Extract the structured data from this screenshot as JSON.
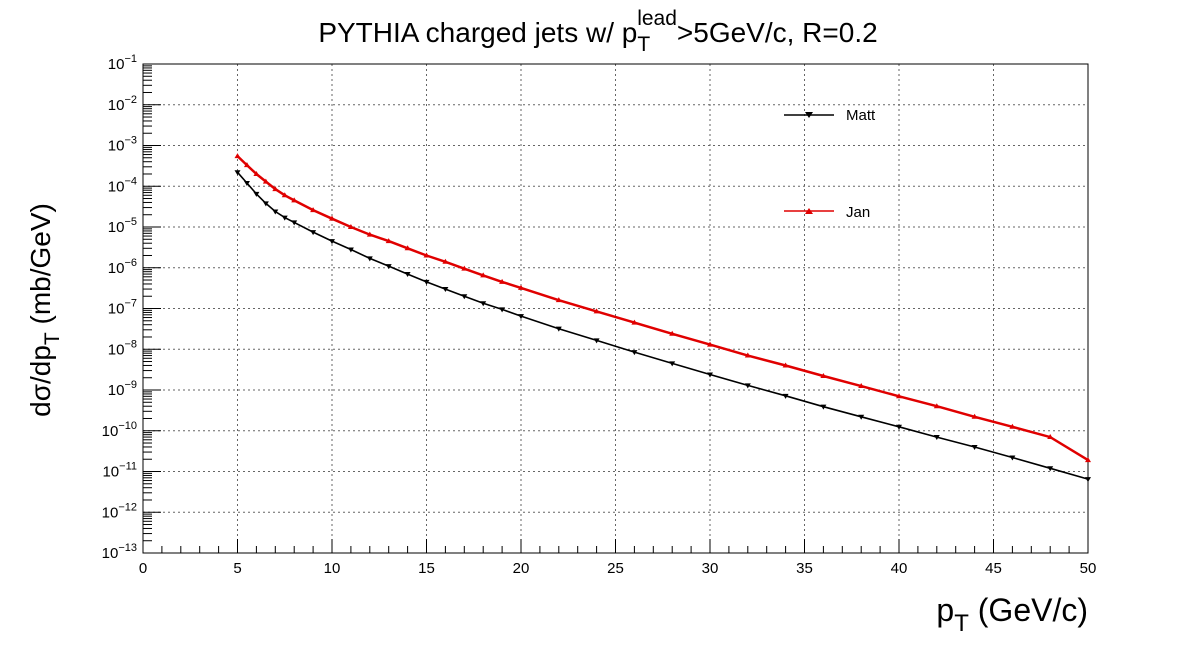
{
  "chart_data": {
    "type": "line",
    "title": {
      "main": "PYTHIA charged jets w/ p",
      "sub": "T",
      "sup": "lead",
      "rest": ">5GeV/c, R=0.2"
    },
    "xlabel": {
      "main": "p",
      "sub": "T",
      "rest": " (GeV/c)"
    },
    "ylabel": {
      "main": "dσ/dp",
      "sub": "T",
      "rest": " (mb/GeV)"
    },
    "xlim": [
      0,
      50
    ],
    "ylim": [
      1e-13,
      0.1
    ],
    "yscale": "log",
    "grid": true,
    "legend_position": "top-right",
    "x_ticks": [
      "0",
      "5",
      "10",
      "15",
      "20",
      "25",
      "30",
      "35",
      "40",
      "45",
      "50"
    ],
    "y_ticks": [
      {
        "base": "10",
        "exp": "−13"
      },
      {
        "base": "10",
        "exp": "−12"
      },
      {
        "base": "10",
        "exp": "−11"
      },
      {
        "base": "10",
        "exp": "−10"
      },
      {
        "base": "10",
        "exp": "−9"
      },
      {
        "base": "10",
        "exp": "−8"
      },
      {
        "base": "10",
        "exp": "−7"
      },
      {
        "base": "10",
        "exp": "−6"
      },
      {
        "base": "10",
        "exp": "−5"
      },
      {
        "base": "10",
        "exp": "−4"
      },
      {
        "base": "10",
        "exp": "−3"
      },
      {
        "base": "10",
        "exp": "−2"
      },
      {
        "base": "10",
        "exp": "−1"
      }
    ],
    "series": [
      {
        "name": "Matt",
        "color": "#000000",
        "marker": "triangle-down",
        "x": [
          5,
          5.5,
          6,
          6.5,
          7,
          7.5,
          8,
          9,
          10,
          11,
          12,
          13,
          14,
          15,
          16,
          17,
          18,
          19,
          20,
          22,
          24,
          26,
          28,
          30,
          32,
          34,
          36,
          38,
          40,
          42,
          44,
          46,
          48,
          50
        ],
        "y": [
          0.00022,
          0.00012,
          6.5e-05,
          3.8e-05,
          2.4e-05,
          1.7e-05,
          1.3e-05,
          7.5e-06,
          4.5e-06,
          2.8e-06,
          1.7e-06,
          1.1e-06,
          7e-07,
          4.5e-07,
          3e-07,
          2e-07,
          1.35e-07,
          9.5e-08,
          6.5e-08,
          3.2e-08,
          1.65e-08,
          8.5e-09,
          4.5e-09,
          2.4e-09,
          1.3e-09,
          7.2e-10,
          3.9e-10,
          2.2e-10,
          1.25e-10,
          7e-11,
          4e-11,
          2.2e-11,
          1.2e-11,
          6.5e-12
        ]
      },
      {
        "name": "Jan",
        "color": "#e00000",
        "marker": "triangle-up",
        "x": [
          5,
          5.5,
          6,
          6.5,
          7,
          7.5,
          8,
          9,
          10,
          11,
          12,
          13,
          14,
          15,
          16,
          17,
          18,
          19,
          20,
          22,
          24,
          26,
          28,
          30,
          32,
          34,
          36,
          38,
          40,
          42,
          44,
          46,
          48,
          50
        ],
        "y": [
          0.00055,
          0.00033,
          0.0002,
          0.00013,
          8.5e-05,
          6e-05,
          4.5e-05,
          2.6e-05,
          1.6e-05,
          1e-05,
          6.5e-06,
          4.5e-06,
          3e-06,
          2e-06,
          1.4e-06,
          9.5e-07,
          6.5e-07,
          4.5e-07,
          3.2e-07,
          1.6e-07,
          8.5e-08,
          4.5e-08,
          2.4e-08,
          1.3e-08,
          7e-09,
          4e-09,
          2.2e-09,
          1.25e-09,
          7e-10,
          4e-10,
          2.2e-10,
          1.25e-10,
          7e-11,
          1.9e-11
        ]
      }
    ]
  }
}
